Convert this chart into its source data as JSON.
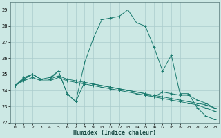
{
  "title": "",
  "xlabel": "Humidex (Indice chaleur)",
  "background_color": "#cce8e4",
  "grid_color": "#aacccc",
  "line_color": "#1a7a6e",
  "xlim": [
    -0.5,
    23.5
  ],
  "ylim": [
    22,
    29.5
  ],
  "yticks": [
    22,
    23,
    24,
    25,
    26,
    27,
    28,
    29
  ],
  "xticks": [
    0,
    1,
    2,
    3,
    4,
    5,
    6,
    7,
    8,
    9,
    10,
    11,
    12,
    13,
    14,
    15,
    16,
    17,
    18,
    19,
    20,
    21,
    22,
    23
  ],
  "series": [
    [
      24.3,
      24.8,
      25.0,
      24.7,
      24.8,
      25.2,
      23.8,
      23.3,
      25.7,
      27.2,
      28.4,
      28.5,
      28.6,
      29.0,
      28.2,
      28.0,
      26.7,
      25.2,
      26.2,
      23.8,
      23.8,
      22.9,
      22.4,
      22.2
    ],
    [
      24.3,
      24.7,
      25.0,
      24.7,
      24.7,
      25.2,
      23.8,
      23.3,
      24.5,
      24.4,
      24.3,
      24.2,
      24.1,
      24.0,
      23.9,
      23.8,
      23.6,
      23.9,
      23.8,
      23.7,
      23.7,
      23.4,
      23.2,
      22.9
    ],
    [
      24.3,
      24.7,
      25.0,
      24.7,
      24.7,
      24.9,
      24.7,
      24.6,
      24.5,
      24.4,
      24.3,
      24.2,
      24.1,
      24.0,
      23.9,
      23.8,
      23.7,
      23.6,
      23.5,
      23.4,
      23.3,
      23.2,
      23.1,
      22.9
    ],
    [
      24.3,
      24.6,
      24.8,
      24.6,
      24.6,
      24.8,
      24.6,
      24.5,
      24.4,
      24.3,
      24.2,
      24.1,
      24.0,
      23.9,
      23.8,
      23.7,
      23.6,
      23.5,
      23.4,
      23.3,
      23.2,
      23.1,
      22.9,
      22.7
    ]
  ]
}
